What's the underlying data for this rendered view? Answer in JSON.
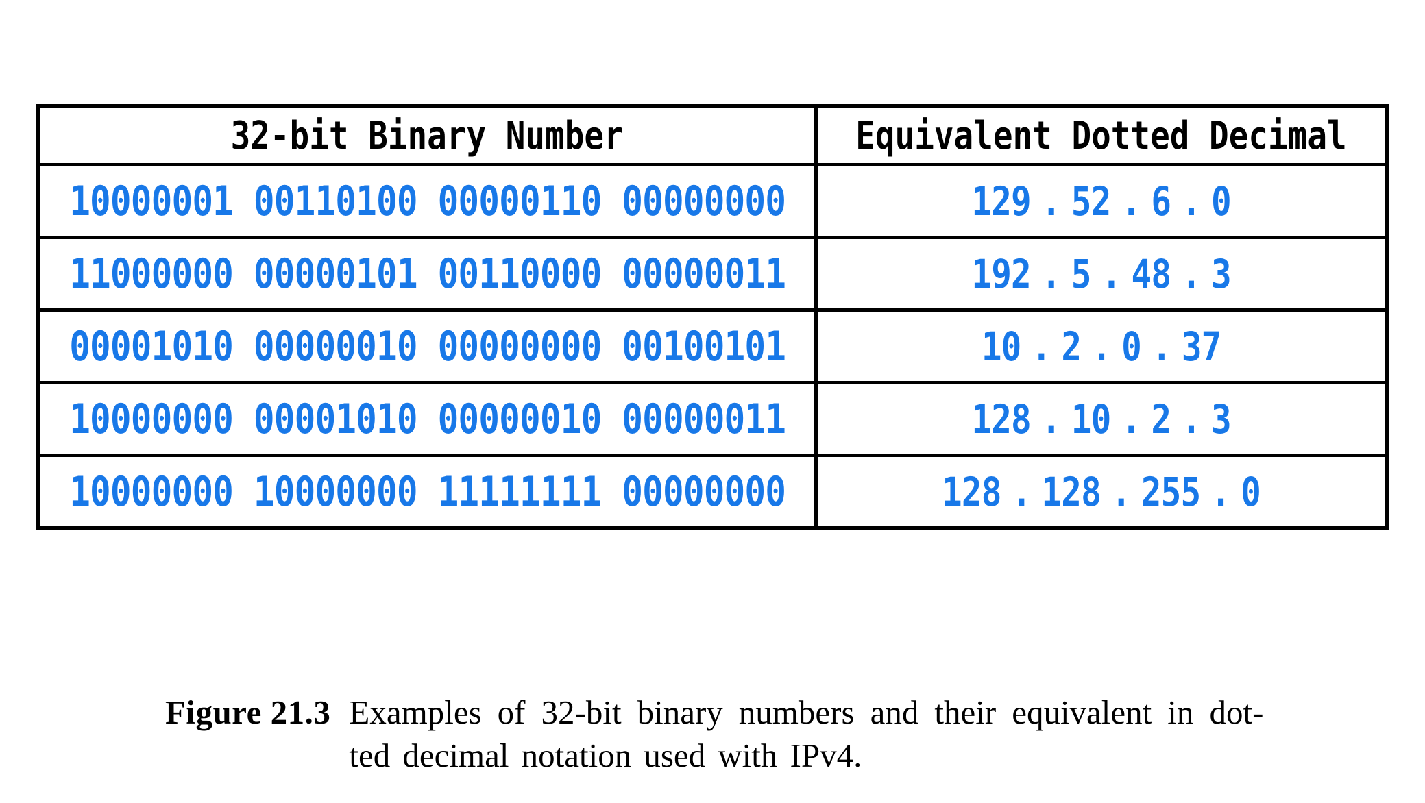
{
  "table": {
    "headers": {
      "binary": "32-bit Binary Number",
      "decimal": "Equivalent Dotted Decimal"
    },
    "rows": [
      {
        "binary": "10000001 00110100 00000110 00000000",
        "decimal": "129 . 52 . 6 . 0"
      },
      {
        "binary": "11000000 00000101 00110000 00000011",
        "decimal": "192 . 5 . 48 . 3"
      },
      {
        "binary": "00001010 00000010 00000000 00100101",
        "decimal": "10 . 2 . 0 . 37"
      },
      {
        "binary": "10000000 00001010 00000010 00000011",
        "decimal": "128 . 10 . 2 . 3"
      },
      {
        "binary": "10000000 10000000 11111111 00000000",
        "decimal": "128 . 128 . 255 . 0"
      }
    ]
  },
  "caption": {
    "label": "Figure 21.3",
    "line1": "Examples of 32-bit binary numbers and their equivalent in dot-",
    "line2": "ted decimal notation used with IPv4."
  },
  "colors": {
    "binary_blue": "#1878E8",
    "border_black": "#000000",
    "background": "#ffffff"
  }
}
